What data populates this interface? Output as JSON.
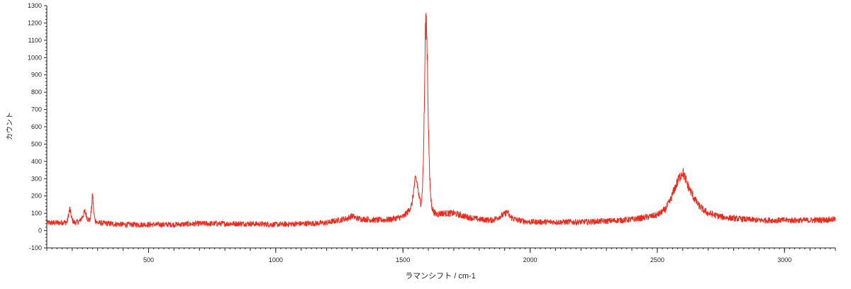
{
  "chart_data": {
    "type": "line",
    "title": "",
    "xlabel": "ラマンシフト / cm-1",
    "ylabel": "カウント",
    "xlim": [
      100,
      3200
    ],
    "ylim": [
      -100,
      1300
    ],
    "x_ticks": [
      500,
      1000,
      1500,
      2000,
      2500,
      3000
    ],
    "x_tick_labels": [
      "500",
      "1000",
      "1500",
      "2000",
      "2500",
      "3000"
    ],
    "y_ticks": [
      -100,
      0,
      100,
      200,
      300,
      400,
      500,
      600,
      700,
      800,
      900,
      1000,
      1100,
      1200,
      1300
    ],
    "y_tick_labels": [
      "-100",
      "0",
      "100",
      "200",
      "300",
      "400",
      "500",
      "600",
      "700",
      "800",
      "900",
      "1000",
      "1100",
      "1200",
      "1300"
    ],
    "grid": false,
    "legend": "none",
    "line_color": "#e8291c",
    "series": [
      {
        "x": [
          100,
          150,
          180,
          190,
          200,
          210,
          230,
          250,
          260,
          270,
          275,
          280,
          285,
          290,
          300,
          350,
          400,
          500,
          600,
          700,
          800,
          900,
          1000,
          1100,
          1200,
          1280,
          1300,
          1320,
          1400,
          1450,
          1500,
          1520,
          1535,
          1545,
          1550,
          1555,
          1560,
          1565,
          1570,
          1575,
          1580,
          1585,
          1588,
          1592,
          1596,
          1600,
          1605,
          1610,
          1615,
          1620,
          1630,
          1650,
          1700,
          1750,
          1800,
          1850,
          1900,
          1910,
          1920,
          1950,
          2000,
          2100,
          2200,
          2300,
          2400,
          2450,
          2500,
          2530,
          2550,
          2570,
          2585,
          2595,
          2600,
          2605,
          2620,
          2640,
          2660,
          2680,
          2700,
          2750,
          2800,
          2900,
          3000,
          3100,
          3200
        ],
        "y": [
          45,
          45,
          50,
          125,
          60,
          45,
          55,
          110,
          70,
          60,
          120,
          210,
          100,
          60,
          45,
          40,
          35,
          35,
          35,
          40,
          40,
          40,
          35,
          40,
          45,
          70,
          85,
          70,
          60,
          65,
          80,
          110,
          150,
          260,
          300,
          280,
          230,
          180,
          160,
          200,
          380,
          800,
          1150,
          1200,
          1000,
          620,
          300,
          180,
          130,
          110,
          95,
          100,
          100,
          80,
          65,
          60,
          95,
          110,
          80,
          60,
          50,
          50,
          50,
          55,
          65,
          75,
          90,
          120,
          170,
          250,
          300,
          330,
          340,
          320,
          260,
          200,
          150,
          120,
          100,
          80,
          70,
          60,
          60,
          60,
          65
        ]
      }
    ]
  }
}
